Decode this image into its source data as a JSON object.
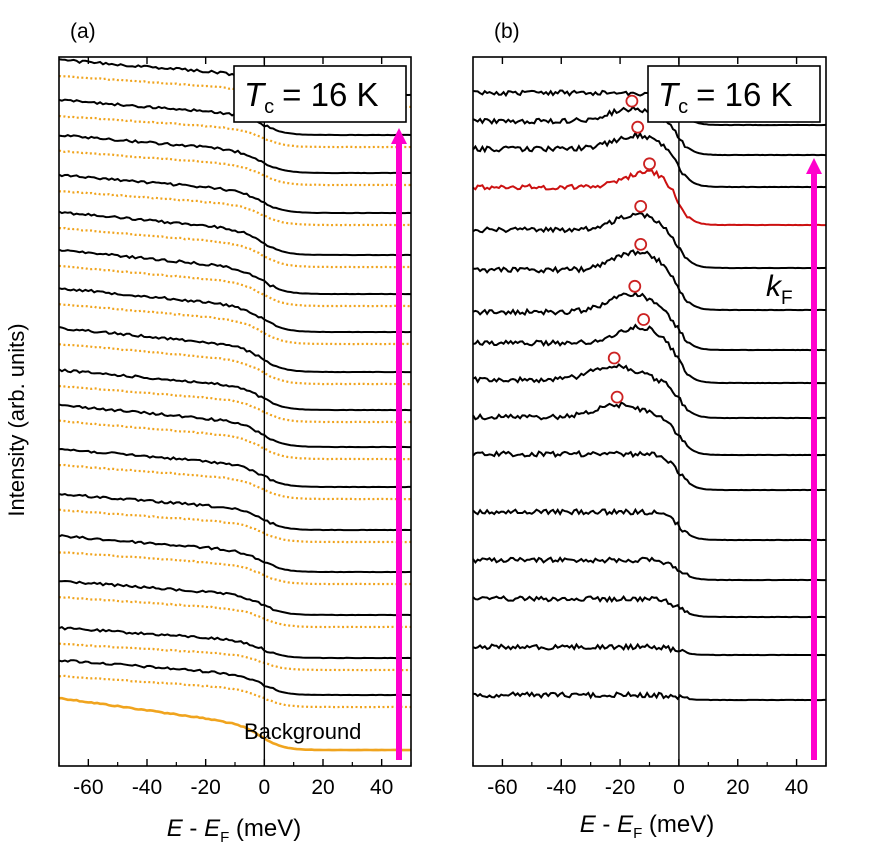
{
  "chart_data": [
    {
      "type": "line",
      "panel_label": "(a)",
      "title": "T_c = 16 K",
      "title_var": "T",
      "title_sub": "c",
      "title_rest": "= 16 K",
      "ylabel": "Intensity (arb. units)",
      "xlabel_var": "E",
      "xlabel_mid": " - ",
      "xlabel_var2": "E",
      "xlabel_sub": "F",
      "xlabel_unit": " (meV)",
      "xlim": [
        -70,
        50
      ],
      "xticks": [
        -60,
        -40,
        -20,
        0,
        20,
        40
      ],
      "tick_labels": [
        "-60",
        "-40",
        "-20",
        "0",
        "20",
        "40"
      ],
      "fermi_line_x": 0,
      "series_count": 16,
      "series_offsets": [
        695,
        658,
        615,
        572,
        530,
        487,
        447,
        410,
        372,
        332,
        294,
        255,
        213,
        173,
        135,
        95
      ],
      "step_heights": [
        35,
        30,
        34,
        36,
        36,
        38,
        42,
        40,
        44,
        44,
        44,
        43,
        38,
        38,
        35,
        35
      ],
      "background_label": "Background",
      "arrow_color": "#ff00cc",
      "series_color": "#000000",
      "reference_color": "#f0a41e"
    },
    {
      "type": "line",
      "panel_label": "(b)",
      "title": "T_c = 16 K",
      "title_var": "T",
      "title_sub": "c",
      "title_rest": "= 16 K",
      "xlabel_var": "E",
      "xlabel_mid": " - ",
      "xlabel_var2": "E",
      "xlabel_sub": "F",
      "xlabel_unit": " (meV)",
      "xlim": [
        -70,
        50
      ],
      "xticks": [
        -60,
        -40,
        -20,
        0,
        20,
        40
      ],
      "tick_labels": [
        "-60",
        "-40",
        "-20",
        "0",
        "20",
        "40"
      ],
      "fermi_line_x": 0,
      "series_count": 16,
      "series_offsets": [
        700,
        655,
        617,
        580,
        540,
        490,
        455,
        418,
        383,
        350,
        310,
        268,
        225,
        187,
        155,
        125
      ],
      "step_heights": [
        5,
        8,
        18,
        20,
        28,
        36,
        38,
        38,
        40,
        38,
        40,
        38,
        38,
        38,
        34,
        32
      ],
      "peak_heights": [
        0,
        0,
        0,
        0,
        0,
        0,
        12,
        14,
        16,
        18,
        18,
        16,
        16,
        14,
        12,
        0
      ],
      "peak_positions": [
        0,
        0,
        0,
        0,
        0,
        0,
        -20,
        -22,
        -13,
        -16,
        -14,
        -14,
        -10,
        -14,
        -16,
        0
      ],
      "peak_markers": [
        {
          "x": -21,
          "y_offset": 8
        },
        {
          "x": -22,
          "y_offset": 8
        },
        {
          "x": -12,
          "y_offset": 8
        },
        {
          "x": -15,
          "y_offset": 8
        },
        {
          "x": -13,
          "y_offset": 8
        },
        {
          "x": -13,
          "y_offset": 8
        },
        {
          "x": -10,
          "y_offset": 8
        },
        {
          "x": -14,
          "y_offset": 8
        },
        {
          "x": -16,
          "y_offset": 8
        }
      ],
      "kf_index": 12,
      "kf_label_var": "k",
      "kf_label_sub": "F",
      "arrow_color": "#ff00cc",
      "series_color": "#000000",
      "kf_color": "#cc1111",
      "marker_color": "#cc2222"
    }
  ]
}
